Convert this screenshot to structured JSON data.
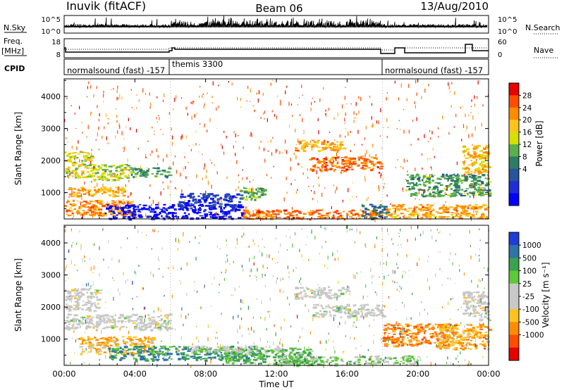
{
  "header": {
    "station": "Inuvik (fitACF)",
    "beam": "Beam 06",
    "date": "13/Aug/2010"
  },
  "strips": {
    "nsky_label": "N.Sky",
    "nsky_ticks": [
      "10^5",
      "10^0"
    ],
    "nsearch_label": "N.Search",
    "nsearch_ticks": [
      "10^5",
      "10^0"
    ],
    "freq_label_1": "Freq.",
    "freq_label_2": "[MHz]",
    "freq_ticks": [
      "18",
      "8"
    ],
    "nave_label": "Nave",
    "nave_ticks": [
      "60",
      "0"
    ],
    "cpid_label": "CPID",
    "cpid_segments": [
      {
        "start_hour": 0,
        "end_hour": 6,
        "name": "normalsound (fast) -157"
      },
      {
        "start_hour": 6,
        "end_hour": 18,
        "name": "themis 3300"
      },
      {
        "start_hour": 18,
        "end_hour": 24,
        "name": "normalsound (fast) -157"
      }
    ]
  },
  "chart_data": [
    {
      "type": "heatmap",
      "name": "power",
      "ylabel": "Slant Range [km]",
      "yticks": [
        1000,
        2000,
        3000,
        4000
      ],
      "ylim": [
        180,
        4550
      ],
      "xlim": [
        0,
        24
      ],
      "colorbar": {
        "label": "Power [dB]",
        "tick_labels": [
          "28",
          "24",
          "20",
          "16",
          "12",
          "8",
          "4"
        ],
        "colors": [
          "#e60000",
          "#ff4d00",
          "#ff8c00",
          "#ffc31f",
          "#d6e000",
          "#5ab04a",
          "#2c7d63",
          "#27549b",
          "#1f2dd6",
          "#0000ff"
        ]
      },
      "regions": [
        {
          "x0": 0,
          "x1": 3.8,
          "y0": 300,
          "y1": 800,
          "level": 0.25
        },
        {
          "x0": 0,
          "x1": 1.6,
          "y0": 1500,
          "y1": 2300,
          "level": 0.45
        },
        {
          "x0": 1.6,
          "x1": 3.6,
          "y0": 1400,
          "y1": 1900,
          "level": 0.5
        },
        {
          "x0": 3.6,
          "x1": 5.9,
          "y0": 1500,
          "y1": 1800,
          "level": 0.6
        },
        {
          "x0": 0.2,
          "x1": 3.5,
          "y0": 900,
          "y1": 1200,
          "level": 0.3
        },
        {
          "x0": 2.3,
          "x1": 10.1,
          "y0": 200,
          "y1": 650,
          "level": 0.95
        },
        {
          "x0": 6.4,
          "x1": 10.0,
          "y0": 600,
          "y1": 1000,
          "level": 0.82
        },
        {
          "x0": 9.9,
          "x1": 11.3,
          "y0": 800,
          "y1": 1200,
          "level": 0.55
        },
        {
          "x0": 10.0,
          "x1": 18.0,
          "y0": 200,
          "y1": 480,
          "level": 0.2
        },
        {
          "x0": 13.0,
          "x1": 15.8,
          "y0": 2300,
          "y1": 2650,
          "level": 0.3
        },
        {
          "x0": 13.8,
          "x1": 17.9,
          "y0": 1700,
          "y1": 2150,
          "level": 0.2
        },
        {
          "x0": 16.8,
          "x1": 18.2,
          "y0": 200,
          "y1": 650,
          "level": 0.7
        },
        {
          "x0": 18.2,
          "x1": 24.0,
          "y0": 200,
          "y1": 650,
          "level": 0.3
        },
        {
          "x0": 19.3,
          "x1": 24.0,
          "y0": 900,
          "y1": 1600,
          "level": 0.6
        },
        {
          "x0": 22.5,
          "x1": 24.0,
          "y0": 1600,
          "y1": 2500,
          "level": 0.35
        }
      ]
    },
    {
      "type": "heatmap",
      "name": "velocity",
      "ylabel": "Slant Range [km]",
      "yticks": [
        1000,
        2000,
        3000,
        4000
      ],
      "ylim": [
        180,
        4550
      ],
      "xlim": [
        0,
        24
      ],
      "xlabel": "Time UT",
      "xticks": [
        0,
        4,
        8,
        12,
        16,
        20,
        24
      ],
      "xtick_labels": [
        "00:00",
        "04:00",
        "08:00",
        "12:00",
        "16:00",
        "20:00",
        "00:00"
      ],
      "colorbar": {
        "label": "Velocity [m s⁻¹]",
        "tick_labels": [
          "1000",
          "500",
          "100",
          "25",
          "-25",
          "-100",
          "-500",
          "-1000"
        ],
        "colors": [
          "#1f3dd6",
          "#2f73a8",
          "#3aa24e",
          "#5fc83a",
          "#c8c8c8",
          "#c8c8c8",
          "#ffc31f",
          "#ff8c00",
          "#ff4d00",
          "#e60000"
        ]
      },
      "regions": [
        {
          "x0": 0,
          "x1": 2.0,
          "y0": 1900,
          "y1": 2600,
          "level": 0.5
        },
        {
          "x0": 0,
          "x1": 6.0,
          "y0": 1300,
          "y1": 1800,
          "level": 0.5
        },
        {
          "x0": 0.8,
          "x1": 5.0,
          "y0": 550,
          "y1": 1100,
          "level": 0.68
        },
        {
          "x0": 2.5,
          "x1": 11.0,
          "y0": 350,
          "y1": 800,
          "level": 0.22
        },
        {
          "x0": 9.0,
          "x1": 14.0,
          "y0": 250,
          "y1": 700,
          "level": 0.32
        },
        {
          "x0": 7.0,
          "x1": 13.0,
          "y0": 600,
          "y1": 800,
          "level": 0.45
        },
        {
          "x0": 13.0,
          "x1": 16.0,
          "y0": 2300,
          "y1": 2650,
          "level": 0.5
        },
        {
          "x0": 14.0,
          "x1": 18.0,
          "y0": 1700,
          "y1": 2100,
          "level": 0.5
        },
        {
          "x0": 18.0,
          "x1": 22.0,
          "y0": 800,
          "y1": 1500,
          "level": 0.78
        },
        {
          "x0": 21.0,
          "x1": 24.0,
          "y0": 700,
          "y1": 1500,
          "level": 0.7
        },
        {
          "x0": 22.5,
          "x1": 24.0,
          "y0": 1600,
          "y1": 2500,
          "level": 0.5
        },
        {
          "x0": 12.0,
          "x1": 20.0,
          "y0": 200,
          "y1": 500,
          "level": 0.38
        }
      ]
    }
  ]
}
